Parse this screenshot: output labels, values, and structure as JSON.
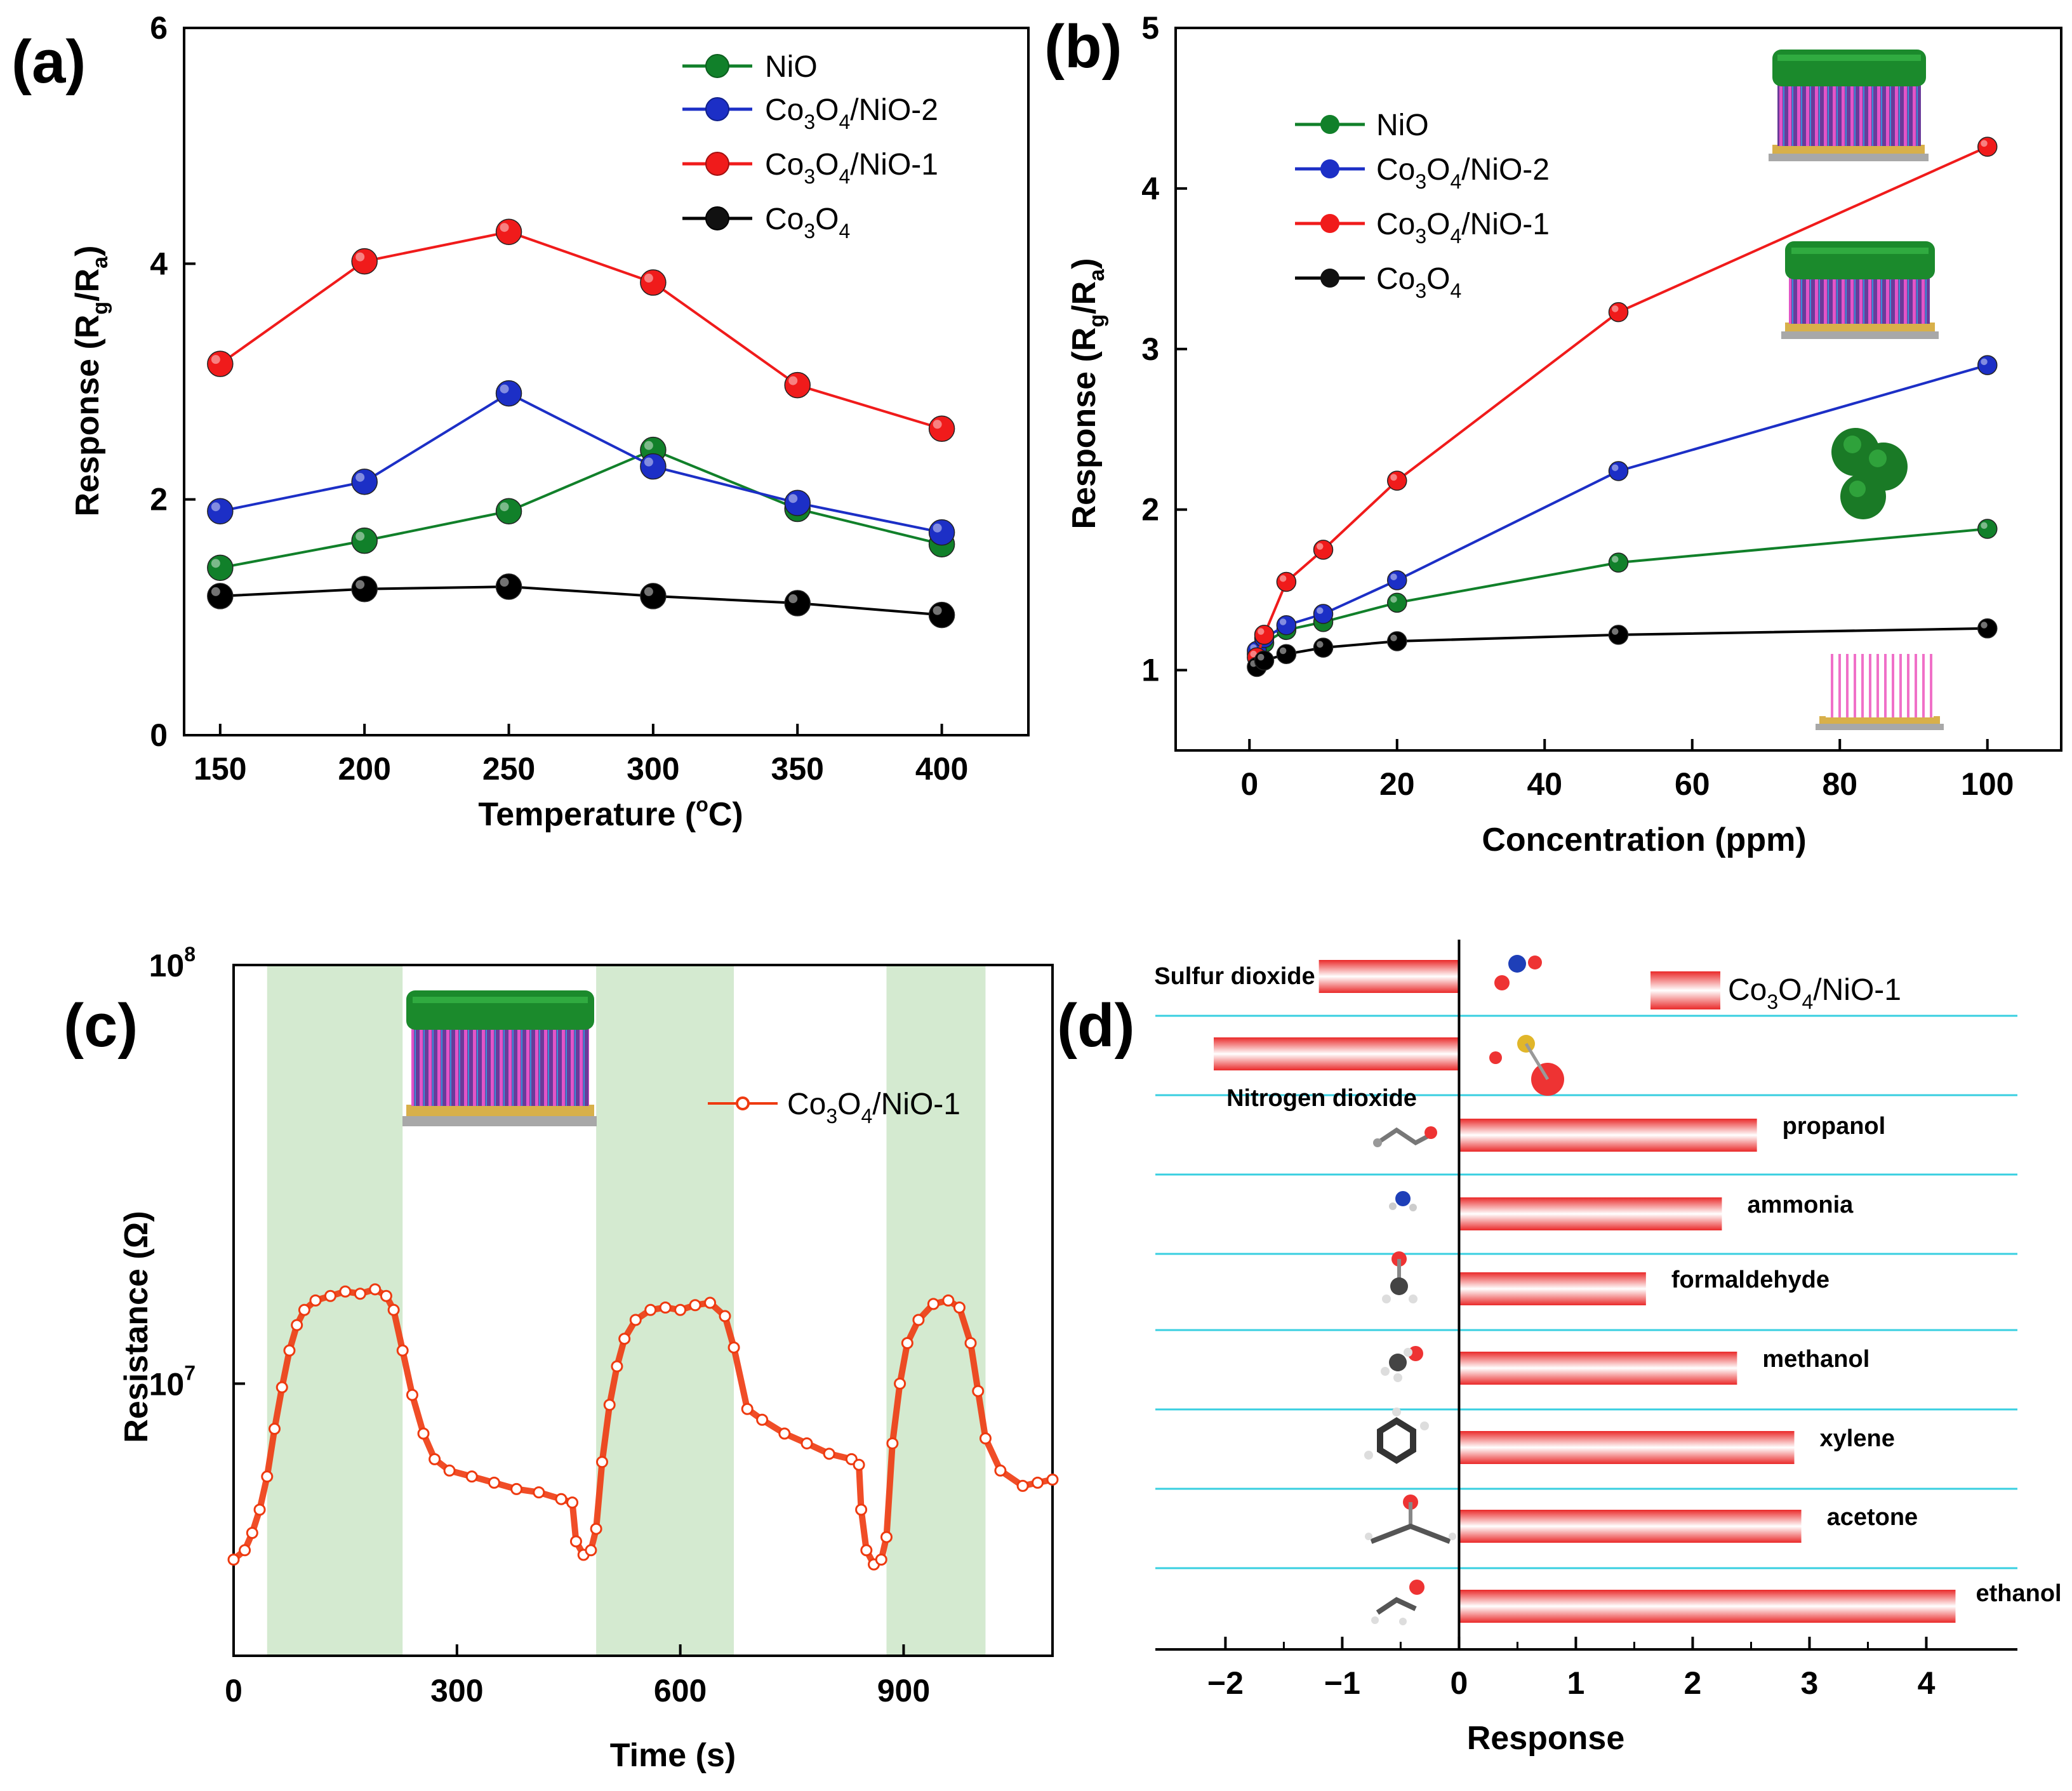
{
  "chart_data": [
    {
      "type": "line",
      "panel": "(a)",
      "xlabel": "Temperature (°C)",
      "ylabel": "Response (R_g/R_a)",
      "xlim": [
        137.5,
        430
      ],
      "ylim": [
        0,
        6
      ],
      "xticks": [
        150,
        200,
        250,
        300,
        350,
        400
      ],
      "yticks": [
        0,
        2,
        4,
        6
      ],
      "x": [
        150,
        200,
        250,
        300,
        350,
        400
      ],
      "legend_position": "top-right",
      "series": [
        {
          "name": "NiO",
          "color": "#11802a",
          "values": [
            1.42,
            1.65,
            1.9,
            2.42,
            1.92,
            1.62
          ]
        },
        {
          "name": "Co3O4/NiO-2",
          "color": "#1c2fc6",
          "values": [
            1.9,
            2.15,
            2.9,
            2.28,
            1.97,
            1.72
          ]
        },
        {
          "name": "Co3O4/NiO-1",
          "color": "#f01b1b",
          "values": [
            3.15,
            4.02,
            4.27,
            3.84,
            2.97,
            2.6
          ]
        },
        {
          "name": "Co3O4",
          "color": "#000000",
          "values": [
            1.18,
            1.24,
            1.26,
            1.18,
            1.12,
            1.02
          ]
        }
      ]
    },
    {
      "type": "line",
      "panel": "(b)",
      "xlabel": "Concentration (ppm)",
      "ylabel": "Response (R_g/R_a)",
      "xlim": [
        -10,
        110
      ],
      "ylim": [
        0.5,
        5
      ],
      "xticks": [
        0,
        20,
        40,
        60,
        80,
        100
      ],
      "yticks": [
        1,
        2,
        3,
        4,
        5
      ],
      "x": [
        1,
        2,
        5,
        10,
        20,
        50,
        100
      ],
      "legend_position": "top-left",
      "series": [
        {
          "name": "NiO",
          "color": "#11802a",
          "values": [
            1.1,
            1.17,
            1.25,
            1.3,
            1.42,
            1.67,
            1.88
          ]
        },
        {
          "name": "Co3O4/NiO-2",
          "color": "#1c2fc6",
          "values": [
            1.12,
            1.2,
            1.28,
            1.35,
            1.56,
            2.24,
            2.9
          ]
        },
        {
          "name": "Co3O4/NiO-1",
          "color": "#f01b1b",
          "values": [
            1.08,
            1.22,
            1.55,
            1.75,
            2.18,
            3.23,
            4.26
          ]
        },
        {
          "name": "Co3O4",
          "color": "#000000",
          "values": [
            1.02,
            1.06,
            1.1,
            1.14,
            1.18,
            1.22,
            1.26
          ]
        }
      ]
    },
    {
      "type": "line",
      "panel": "(c)",
      "xlabel": "Time (s)",
      "ylabel": "Resistance (Ω)",
      "yscale": "log",
      "xlim": [
        0,
        1100
      ],
      "ylim_log10": [
        6.35,
        8
      ],
      "xticks": [
        0,
        300,
        600,
        900
      ],
      "ytick_base": "10",
      "ytick_exponents": [
        "8",
        "7"
      ],
      "shaded_intervals_s": [
        [
          45,
          227
        ],
        [
          487,
          672
        ],
        [
          877,
          1010
        ]
      ],
      "legend_position": "top-right",
      "series": [
        {
          "name": "Co3O4/NiO-1",
          "color": "#ee3a10",
          "time_s": [
            0,
            15,
            25,
            35,
            45,
            55,
            65,
            75,
            85,
            95,
            110,
            130,
            150,
            170,
            190,
            205,
            215,
            227,
            240,
            255,
            270,
            290,
            320,
            350,
            380,
            410,
            440,
            455,
            460,
            470,
            480,
            487,
            495,
            505,
            515,
            525,
            540,
            560,
            580,
            600,
            620,
            640,
            660,
            672,
            690,
            710,
            740,
            770,
            800,
            830,
            840,
            843,
            850,
            860,
            870,
            877,
            885,
            895,
            905,
            920,
            940,
            960,
            975,
            990,
            1000,
            1010,
            1030,
            1060,
            1080,
            1100
          ],
          "resistance_ohm": [
            3800000.0,
            4000000.0,
            4400000.0,
            5000000.0,
            6000000.0,
            7800000.0,
            9800000.0,
            12000000.0,
            13800000.0,
            15000000.0,
            15800000.0,
            16200000.0,
            16600000.0,
            16400000.0,
            16800000.0,
            16200000.0,
            15000000.0,
            12000000.0,
            9400000.0,
            7600000.0,
            6600000.0,
            6200000.0,
            6000000.0,
            5800000.0,
            5600000.0,
            5500000.0,
            5300000.0,
            5200000.0,
            4200000.0,
            3900000.0,
            4000000.0,
            4500000.0,
            6500000.0,
            8900000.0,
            11000000.0,
            12800000.0,
            14200000.0,
            15000000.0,
            15200000.0,
            15000000.0,
            15400000.0,
            15600000.0,
            14500000.0,
            12200000.0,
            8700000.0,
            8200000.0,
            7600000.0,
            7200000.0,
            6800000.0,
            6600000.0,
            6400000.0,
            5000000.0,
            4000000.0,
            3700000.0,
            3800000.0,
            4300000.0,
            7200000.0,
            10000000.0,
            12500000.0,
            14200000.0,
            15500000.0,
            15800000.0,
            15200000.0,
            12500000.0,
            9600000.0,
            7400000.0,
            6200000.0,
            5700000.0,
            5800000.0,
            5900000.0
          ]
        }
      ]
    },
    {
      "type": "bar",
      "orientation": "horizontal",
      "panel": "(d)",
      "xlabel": "Response",
      "xlim": [
        -2.6,
        4.78
      ],
      "xticks": [
        "−2",
        "−1",
        "0",
        "1",
        "2",
        "3",
        "4"
      ],
      "xtick_values": [
        -2,
        -1,
        0,
        1,
        2,
        3,
        4
      ],
      "legend_position": "top-right",
      "legend_entry": "Co3O4/NiO-1",
      "bar_color": "#f01b1b",
      "categories": [
        "Sulfur dioxide",
        "Nitrogen dioxide",
        "propanol",
        "ammonia",
        "formaldehyde",
        "methanol",
        "xylene",
        "acetone",
        "ethanol"
      ],
      "values": [
        -1.2,
        -2.1,
        2.55,
        2.25,
        1.6,
        2.38,
        2.87,
        2.93,
        4.25
      ]
    }
  ],
  "labels": {
    "panel_a": "(a)",
    "panel_b": "(b)",
    "panel_c": "(c)",
    "panel_d": "(d)",
    "response": "Response (R",
    "g": "g",
    "slash_r": "/R",
    "a": "a",
    "close_paren": ")",
    "temperature": "Temperature (",
    "deg": "o",
    "celsius": "C)",
    "concentration": "Concentration (ppm)",
    "resistance": "Resistance (Ω)",
    "time": "Time (s)",
    "response_d": "Response",
    "nio": "NiO",
    "co": "Co",
    "three": "3",
    "o_letter": "O",
    "four": "4",
    "nio2": "/NiO-2",
    "nio1": "/NiO-1"
  }
}
